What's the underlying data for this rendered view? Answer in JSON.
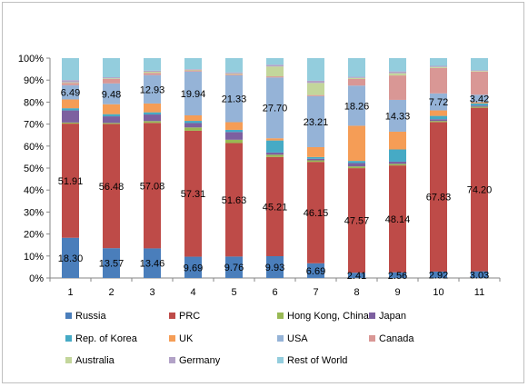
{
  "chart_data": {
    "type": "bar",
    "stacked": true,
    "percent": true,
    "title": "",
    "xlabel": "",
    "ylabel": "",
    "ylim": [
      0,
      100
    ],
    "y_ticks": [
      "0%",
      "10%",
      "20%",
      "30%",
      "40%",
      "50%",
      "60%",
      "70%",
      "80%",
      "90%",
      "100%"
    ],
    "grid": false,
    "legend_position": "bottom",
    "categories": [
      "1",
      "2",
      "3",
      "4",
      "5",
      "6",
      "7",
      "8",
      "9",
      "10",
      "11"
    ],
    "series": [
      {
        "name": "Russia",
        "color": "#4a7ebb",
        "values": [
          18.3,
          13.57,
          13.46,
          9.69,
          9.76,
          9.93,
          6.69,
          2.41,
          2.56,
          2.92,
          3.03
        ],
        "labels": [
          "18.30",
          "13.57",
          "13.46",
          "9.69",
          "9.76",
          "9.93",
          "6.69",
          "2.41",
          "2.56",
          "2.92",
          "3.03"
        ]
      },
      {
        "name": "PRC",
        "color": "#be4b48",
        "values": [
          51.91,
          56.48,
          57.08,
          57.31,
          51.63,
          45.21,
          46.15,
          47.57,
          48.14,
          67.83,
          74.2
        ],
        "labels": [
          "51.91",
          "56.48",
          "57.08",
          "57.31",
          "51.63",
          "45.21",
          "46.15",
          "47.57",
          "48.14",
          "67.83",
          "74.20"
        ]
      },
      {
        "name": "Hong Kong, China",
        "color": "#98b954",
        "values": [
          0.5,
          0.5,
          0.8,
          1.5,
          1.5,
          1.0,
          0.7,
          0.8,
          0.7,
          0.5,
          0.5
        ]
      },
      {
        "name": "Japan",
        "color": "#7d60a0",
        "values": [
          5.5,
          3.0,
          3.0,
          2.0,
          3.5,
          1.0,
          0.7,
          1.5,
          1.0,
          0.8,
          0.5
        ]
      },
      {
        "name": "Rep. of Korea",
        "color": "#46aac5",
        "values": [
          1.0,
          1.0,
          1.0,
          1.0,
          1.0,
          5.5,
          0.8,
          1.0,
          5.5,
          1.5,
          1.0
        ]
      },
      {
        "name": "UK",
        "color": "#f59d56",
        "values": [
          4.0,
          4.5,
          4.0,
          2.5,
          3.5,
          1.0,
          4.5,
          16.0,
          8.0,
          2.5,
          0.5
        ]
      },
      {
        "name": "USA",
        "color": "#95b3d7",
        "values": [
          6.49,
          9.48,
          12.93,
          19.94,
          21.33,
          27.7,
          23.21,
          18.26,
          14.33,
          7.72,
          3.42
        ],
        "labels": [
          "6.49",
          "9.48",
          "12.93",
          "19.94",
          "21.33",
          "27.70",
          "23.21",
          "18.26",
          "14.33",
          "7.72",
          "3.42"
        ]
      },
      {
        "name": "Canada",
        "color": "#d99795",
        "values": [
          1.0,
          2.0,
          1.0,
          0.5,
          0.5,
          0.5,
          0.5,
          3.0,
          11.0,
          11.5,
          10.5
        ]
      },
      {
        "name": "Australia",
        "color": "#c3d69b",
        "values": [
          0.3,
          0.3,
          0.5,
          0.3,
          0.3,
          4.5,
          5.5,
          0.5,
          1.0,
          0.5,
          0.3
        ]
      },
      {
        "name": "Germany",
        "color": "#b2a2c7",
        "values": [
          1.0,
          0.5,
          0.5,
          0.3,
          0.5,
          0.8,
          1.0,
          0.5,
          0.8,
          0.5,
          0.3
        ]
      },
      {
        "name": "Rest of World",
        "color": "#93cddd",
        "values": [
          10.0,
          8.7,
          5.7,
          5.0,
          6.5,
          3.0,
          10.3,
          8.5,
          6.0,
          3.5,
          5.5
        ]
      }
    ]
  }
}
